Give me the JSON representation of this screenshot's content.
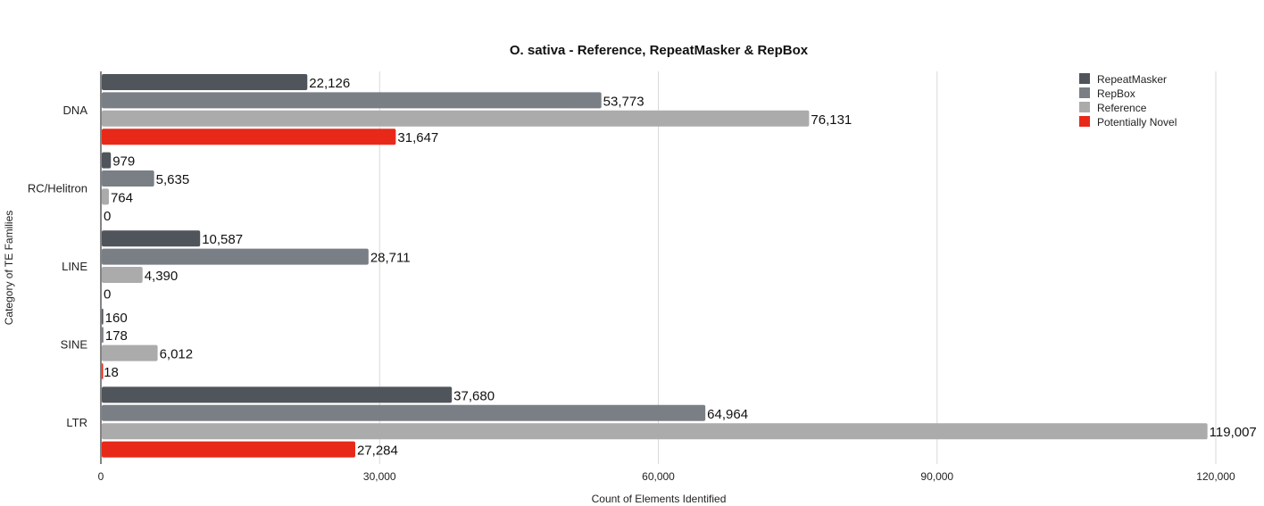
{
  "chart_data": {
    "type": "bar",
    "orientation": "horizontal",
    "title": "O. sativa - Reference, RepeatMasker & RepBox",
    "xlabel": "Count of Elements Identified",
    "ylabel": "Category of TE Families",
    "xlim": [
      0,
      120000
    ],
    "xticks": [
      0,
      30000,
      60000,
      90000,
      120000
    ],
    "xtick_labels": [
      "0",
      "30,000",
      "60,000",
      "90,000",
      "120,000"
    ],
    "grid": "vertical",
    "legend_position": "top-right",
    "categories": [
      "DNA",
      "RC/Helitron",
      "LINE",
      "SINE",
      "LTR"
    ],
    "series": [
      {
        "name": "RepeatMasker",
        "color": "#50555c",
        "values": [
          22126,
          979,
          10587,
          160,
          37680
        ],
        "labels": [
          "22,126",
          "979",
          "10,587",
          "160",
          "37,680"
        ]
      },
      {
        "name": "RepBox",
        "color": "#7a7f86",
        "values": [
          53773,
          5635,
          28711,
          178,
          64964
        ],
        "labels": [
          "53,773",
          "5,635",
          "28,711",
          "178",
          "64,964"
        ]
      },
      {
        "name": "Reference",
        "color": "#ababab",
        "values": [
          76131,
          764,
          4390,
          6012,
          119007
        ],
        "labels": [
          "76,131",
          "764",
          "4,390",
          "6,012",
          "119,007"
        ]
      },
      {
        "name": "Potentially Novel",
        "color": "#e8291a",
        "values": [
          31647,
          0,
          0,
          18,
          27284
        ],
        "labels": [
          "31,647",
          "0",
          "0",
          "18",
          "27,284"
        ]
      }
    ]
  }
}
